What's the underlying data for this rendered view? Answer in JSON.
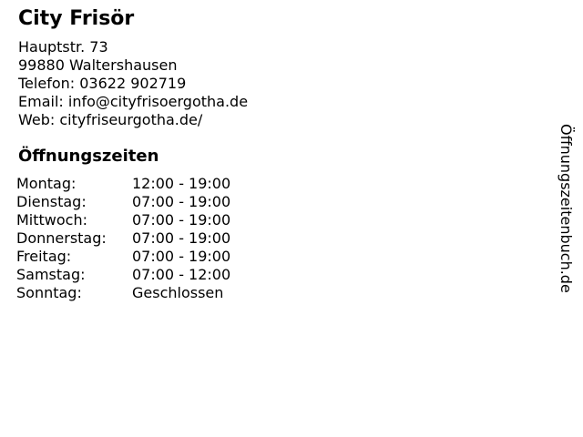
{
  "business": {
    "name": "City Frisör",
    "contact_lines": [
      "Hauptstr. 73",
      "99880 Waltershausen",
      "Telefon: 03622 902719",
      "Email: info@cityfrisoergotha.de",
      "Web: cityfriseurgotha.de/"
    ]
  },
  "hours": {
    "heading": "Öffnungszeiten",
    "rows": [
      {
        "day": "Montag:",
        "time": "12:00 - 19:00"
      },
      {
        "day": "Dienstag:",
        "time": "07:00 - 19:00"
      },
      {
        "day": "Mittwoch:",
        "time": "07:00 - 19:00"
      },
      {
        "day": "Donnerstag:",
        "time": "07:00 - 19:00"
      },
      {
        "day": "Freitag:",
        "time": "07:00 - 19:00"
      },
      {
        "day": "Samstag:",
        "time": "07:00 - 12:00"
      },
      {
        "day": "Sonntag:",
        "time": "Geschlossen"
      }
    ]
  },
  "watermark": "Öffnungszeitenbuch.de",
  "colors": {
    "text": "#000000",
    "background": "#ffffff"
  }
}
